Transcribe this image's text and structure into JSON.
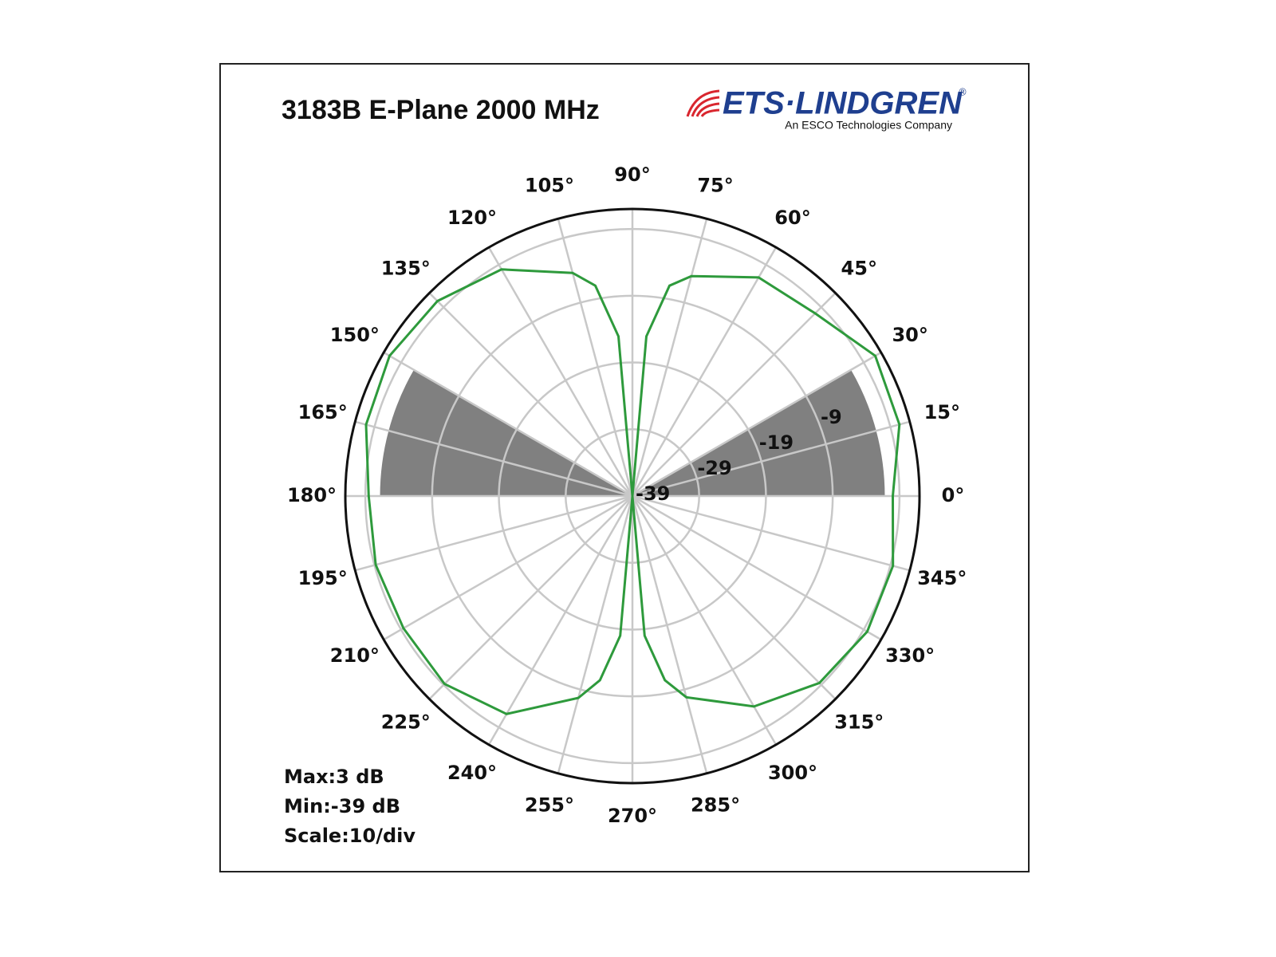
{
  "logo": {
    "name": "ETS·LINDGREN",
    "mark": "®",
    "tagline": "An ESCO Technologies Company"
  },
  "chart_data": {
    "type": "polar",
    "title": "3183B E-Plane 2000 MHz",
    "theta": [
      0,
      15,
      30,
      45,
      60,
      75,
      80,
      85,
      90,
      95,
      100,
      105,
      120,
      135,
      150,
      165,
      180,
      195,
      210,
      225,
      240,
      255,
      260,
      265,
      270,
      275,
      280,
      285,
      300,
      315,
      330,
      345
    ],
    "values": [
      0,
      2.4,
      3,
      -0.3,
      -1.2,
      -4.9,
      -7,
      -15,
      -39,
      -15,
      -7,
      -4.4,
      0.2,
      2.3,
      3,
      2.3,
      0.5,
      0.8,
      0.6,
      0.8,
      -1.3,
      -7.7,
      -11,
      -18,
      -39,
      -18,
      -11,
      -7.8,
      -2.6,
      0.6,
      1.6,
      1.4
    ],
    "color": "#2e9a3c",
    "rlim": [
      -39,
      4
    ],
    "rticks": [
      -39,
      -29,
      -19,
      -9,
      {
        "value": 1,
        "label": null
      }
    ],
    "thetaticks": [
      {
        "value": 0,
        "label": "0°"
      },
      {
        "value": 15,
        "label": "15°"
      },
      {
        "value": 30,
        "label": "30°"
      },
      {
        "value": 45,
        "label": "45°"
      },
      {
        "value": 60,
        "label": "60°"
      },
      {
        "value": 75,
        "label": "75°"
      },
      {
        "value": 90,
        "label": "90°"
      },
      {
        "value": 105,
        "label": "105°"
      },
      {
        "value": 120,
        "label": "120°"
      },
      {
        "value": 135,
        "label": "135°"
      },
      {
        "value": 150,
        "label": "150°"
      },
      {
        "value": 165,
        "label": "165°"
      },
      {
        "value": 180,
        "label": "180°"
      },
      {
        "value": 195,
        "label": "195°"
      },
      {
        "value": 210,
        "label": "210°"
      },
      {
        "value": 225,
        "label": "225°"
      },
      {
        "value": 240,
        "label": "240°"
      },
      {
        "value": 255,
        "label": "255°"
      },
      {
        "value": 270,
        "label": "270°"
      },
      {
        "value": 285,
        "label": "285°"
      },
      {
        "value": 300,
        "label": "300°"
      },
      {
        "value": 315,
        "label": "315°"
      },
      {
        "value": 330,
        "label": "330°"
      },
      {
        "value": 345,
        "label": "345°"
      }
    ],
    "sectors": [
      {
        "start": 0,
        "end": 30,
        "r": -1.2,
        "color": "#808080"
      },
      {
        "start": 150,
        "end": 180,
        "r": -1.2,
        "color": "#808080"
      }
    ],
    "stats": [
      "Max:3 dB",
      "Min:-39 dB",
      "Scale:10/div"
    ],
    "grid": true
  }
}
